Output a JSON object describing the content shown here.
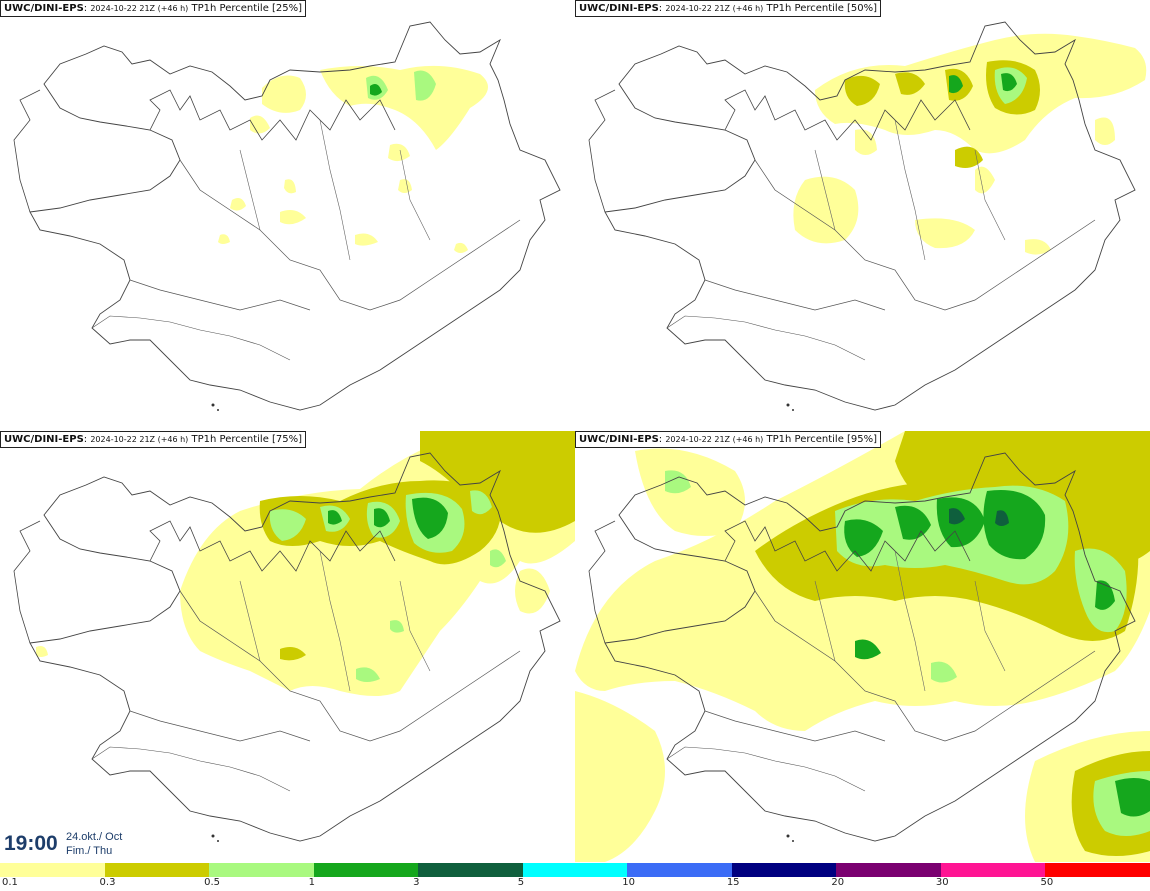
{
  "panels": [
    {
      "prefix": "UWC/DINI-EPS",
      "run": "2024-10-22 21Z (+46 h)",
      "field": "TP1h Percentile [25%]"
    },
    {
      "prefix": "UWC/DINI-EPS",
      "run": "2024-10-22 21Z (+46 h)",
      "field": "TP1h Percentile [50%]"
    },
    {
      "prefix": "UWC/DINI-EPS",
      "run": "2024-10-22 21Z (+46 h)",
      "field": "TP1h Percentile [75%]"
    },
    {
      "prefix": "UWC/DINI-EPS",
      "run": "2024-10-22 21Z (+46 h)",
      "field": "TP1h Percentile [95%]"
    }
  ],
  "valid": {
    "time": "19:00",
    "date_line1": "24.okt./ Oct",
    "date_line2": "Fim./ Thu"
  },
  "legend": {
    "colors": [
      "#ffff99",
      "#cccc00",
      "#a9f97f",
      "#15a71d",
      "#0f5f3d",
      "#00ffff",
      "#3b6cf6",
      "#000080",
      "#7a0070",
      "#ff1493",
      "#ff0000"
    ],
    "labels": [
      "0.1",
      "0.3",
      "0.5",
      "1",
      "3",
      "5",
      "10",
      "15",
      "20",
      "30",
      "50"
    ]
  },
  "precip_colors": {
    "light": "#ffff99",
    "olive": "#cccc00",
    "lightgreen": "#a9f97f",
    "green": "#15a71d"
  }
}
